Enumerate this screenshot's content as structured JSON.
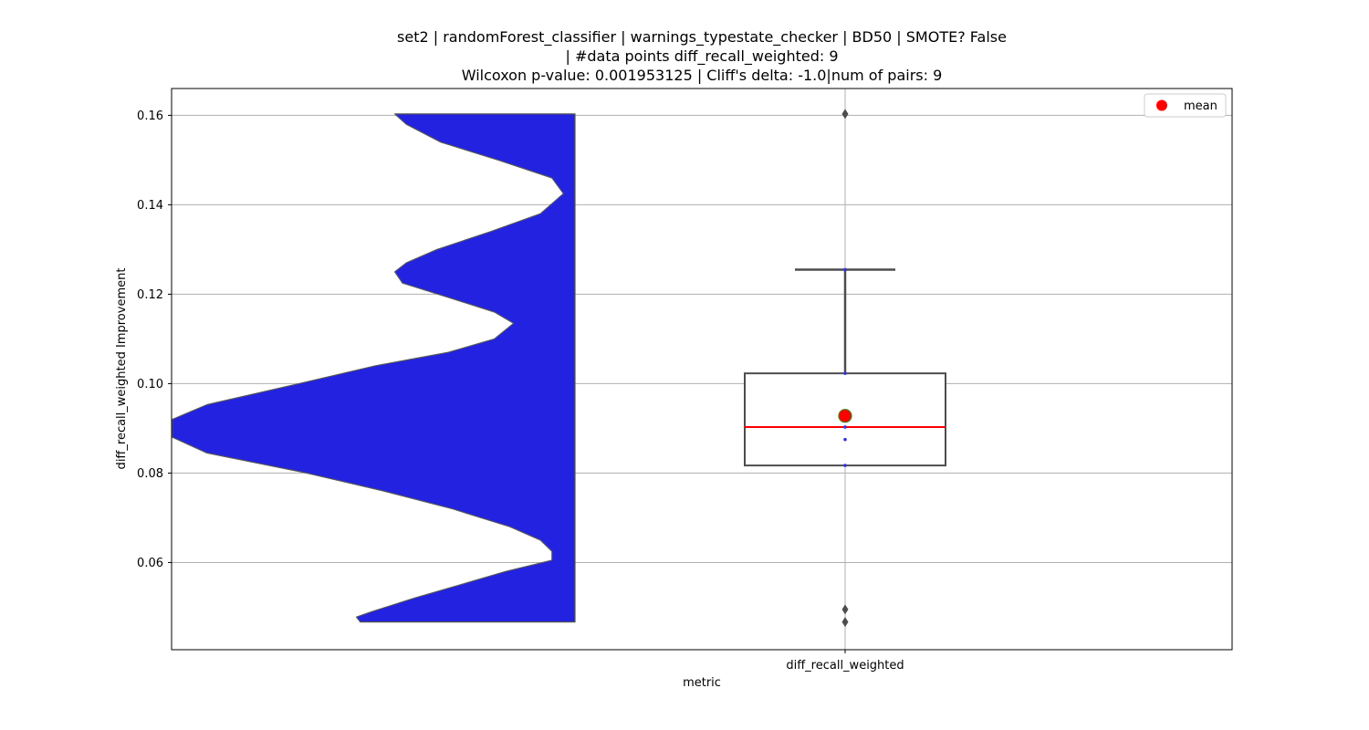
{
  "chart_data": {
    "type": "violin+box",
    "title_lines": [
      "set2 | randomForest_classifier | warnings_typestate_checker | BD50 | SMOTE? False",
      "| #data points diff_recall_weighted: 9",
      "Wilcoxon p-value: 0.001953125 | Cliff's delta: -1.0|num of pairs: 9"
    ],
    "xlabel": "metric",
    "ylabel": "diff_recall_weighted Improvement",
    "categories": [
      "diff_recall_weighted"
    ],
    "ylim": [
      0.0405,
      0.166
    ],
    "yticks": [
      0.06,
      0.08,
      0.1,
      0.12,
      0.14,
      0.16
    ],
    "ytick_labels": [
      "0.06",
      "0.08",
      "0.10",
      "0.12",
      "0.14",
      "0.16"
    ],
    "grid": true,
    "legend": {
      "position": "top-right",
      "entries": [
        {
          "label": "mean",
          "color": "#ff0000"
        }
      ]
    },
    "violin": {
      "color": "#2222e0",
      "edge_color": "#555555",
      "y_min": 0.0467,
      "y_max": 0.1603,
      "density_profile": [
        [
          0.0467,
          0.56
        ],
        [
          0.0478,
          0.57
        ],
        [
          0.049,
          0.53
        ],
        [
          0.052,
          0.42
        ],
        [
          0.055,
          0.3
        ],
        [
          0.058,
          0.18
        ],
        [
          0.0605,
          0.06
        ],
        [
          0.0625,
          0.06
        ],
        [
          0.065,
          0.09
        ],
        [
          0.068,
          0.17
        ],
        [
          0.072,
          0.32
        ],
        [
          0.076,
          0.5
        ],
        [
          0.08,
          0.7
        ],
        [
          0.0845,
          0.96
        ],
        [
          0.088,
          1.05
        ],
        [
          0.092,
          1.05
        ],
        [
          0.0953,
          0.96
        ],
        [
          0.1,
          0.72
        ],
        [
          0.104,
          0.52
        ],
        [
          0.107,
          0.33
        ],
        [
          0.11,
          0.21
        ],
        [
          0.1135,
          0.16
        ],
        [
          0.116,
          0.21
        ],
        [
          0.119,
          0.32
        ],
        [
          0.1225,
          0.45
        ],
        [
          0.125,
          0.47
        ],
        [
          0.127,
          0.44
        ],
        [
          0.13,
          0.36
        ],
        [
          0.134,
          0.22
        ],
        [
          0.138,
          0.09
        ],
        [
          0.1425,
          0.03
        ],
        [
          0.146,
          0.06
        ],
        [
          0.15,
          0.2
        ],
        [
          0.154,
          0.35
        ],
        [
          0.158,
          0.44
        ],
        [
          0.1603,
          0.47
        ]
      ]
    },
    "box": {
      "q1": 0.0817,
      "median": 0.0903,
      "q3": 0.1023,
      "whisker_low": 0.0817,
      "whisker_high": 0.1255,
      "mean": 0.0928,
      "median_color": "#ff0000",
      "outliers": [
        0.1603,
        0.0495,
        0.0467
      ],
      "points": [
        0.0875,
        0.0817,
        0.1023,
        0.1255,
        0.0903
      ]
    }
  }
}
